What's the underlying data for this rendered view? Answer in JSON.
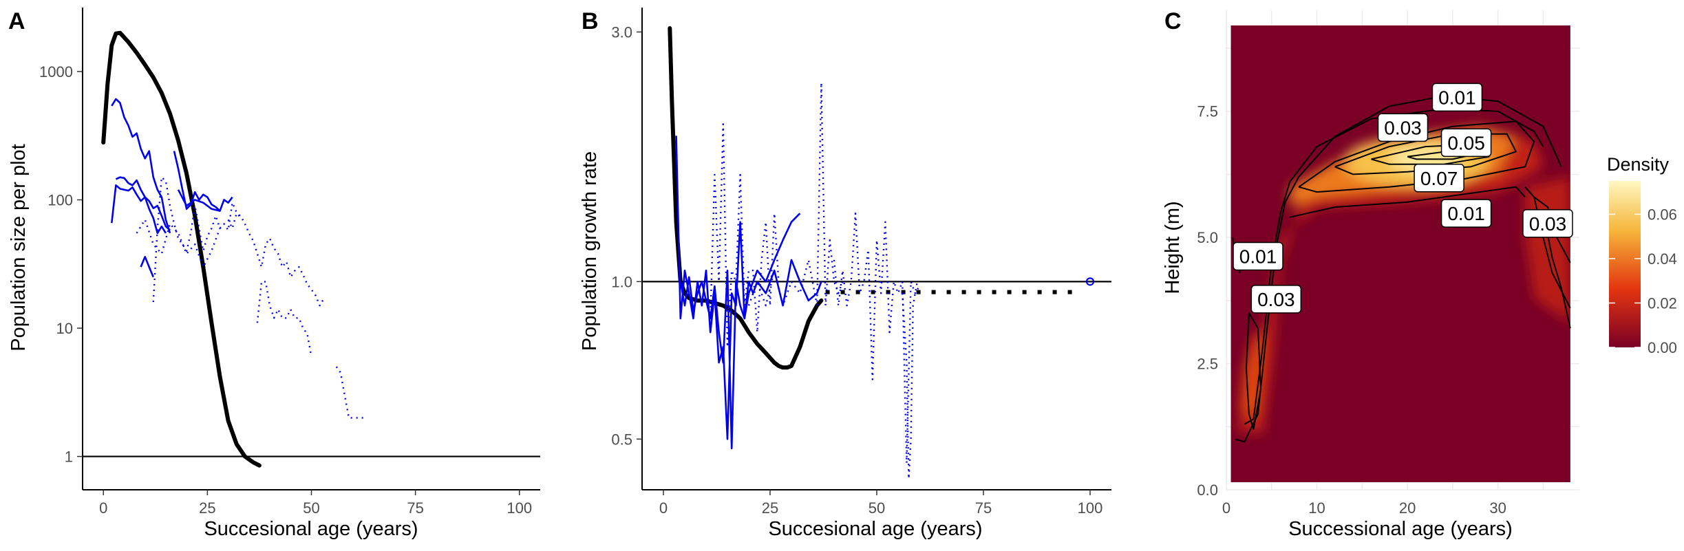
{
  "chart_data": [
    {
      "panel": "A",
      "type": "line",
      "xlabel": "Succesional age (years)",
      "ylabel": "Population size per plot",
      "xlim": [
        -5,
        105
      ],
      "ylim": [
        0.55,
        3000
      ],
      "y_scale": "log10",
      "x_ticks": [
        0,
        25,
        50,
        75,
        100
      ],
      "y_ticks": [
        1,
        10,
        100,
        1000
      ],
      "hline": 1,
      "series": [
        {
          "style": "thick-black",
          "x": [
            0,
            1,
            2,
            3,
            4,
            6,
            8,
            10,
            12,
            14,
            16,
            18,
            20,
            22,
            24,
            26,
            28,
            30,
            32,
            34,
            36,
            37.5
          ],
          "y": [
            280,
            800,
            1600,
            1980,
            2000,
            1700,
            1400,
            1130,
            900,
            680,
            470,
            290,
            160,
            75,
            30,
            11,
            4.2,
            1.9,
            1.25,
            1.0,
            0.9,
            0.85
          ]
        },
        {
          "style": "solid",
          "x": [
            2,
            3,
            4,
            5,
            6,
            7,
            8,
            9,
            10,
            11,
            12,
            13,
            14,
            15,
            16
          ],
          "y": [
            540,
            610,
            570,
            440,
            380,
            310,
            330,
            250,
            210,
            240,
            150,
            120,
            105,
            70,
            55
          ]
        },
        {
          "style": "solid",
          "x": [
            3,
            4,
            5,
            6,
            7,
            8,
            9,
            10,
            11,
            12,
            13,
            14,
            15,
            16
          ],
          "y": [
            145,
            150,
            148,
            135,
            130,
            142,
            120,
            105,
            98,
            86,
            90,
            75,
            62,
            58
          ]
        },
        {
          "style": "solid",
          "x": [
            2,
            3,
            4,
            5,
            6,
            7,
            8,
            9,
            10,
            11,
            12,
            13,
            14,
            15
          ],
          "y": [
            66,
            130,
            122,
            120,
            118,
            125,
            110,
            98,
            105,
            85,
            72,
            55,
            62,
            55
          ]
        },
        {
          "style": "solid",
          "x": [
            9,
            10,
            11,
            12
          ],
          "y": [
            30,
            36,
            30,
            25
          ]
        },
        {
          "style": "solid",
          "x": [
            17,
            18,
            19,
            20,
            21,
            22,
            23,
            24,
            25,
            26,
            27,
            28,
            29,
            30,
            31
          ],
          "y": [
            240,
            175,
            120,
            85,
            92,
            115,
            100,
            110,
            105,
            92,
            88,
            82,
            100,
            95,
            105
          ]
        },
        {
          "style": "solid",
          "x": [
            18,
            20,
            22,
            24,
            26,
            28
          ],
          "y": [
            120,
            90,
            100,
            95,
            85,
            82
          ]
        },
        {
          "style": "dotted",
          "x": [
            12,
            13,
            14,
            15,
            16,
            17,
            18,
            19,
            20,
            21,
            22,
            23,
            24,
            25,
            26,
            27,
            28,
            29,
            30,
            31,
            32,
            33
          ],
          "y": [
            16,
            60,
            150,
            140,
            90,
            65,
            50,
            45,
            40,
            55,
            90,
            60,
            40,
            52,
            60,
            75,
            60,
            65,
            58,
            95,
            80,
            72
          ]
        },
        {
          "style": "dotted",
          "x": [
            8,
            10,
            12,
            14,
            16,
            18,
            20,
            22,
            24,
            26,
            28
          ],
          "y": [
            55,
            70,
            45,
            38,
            65,
            55,
            38,
            45,
            30,
            40,
            60
          ]
        },
        {
          "style": "dotted",
          "x": [
            30,
            31,
            32,
            33,
            34,
            35,
            36,
            37,
            38,
            39,
            40,
            41,
            42,
            43,
            44,
            45,
            46,
            47,
            48,
            49,
            50,
            51,
            52,
            53
          ],
          "y": [
            70,
            60,
            78,
            75,
            65,
            55,
            48,
            38,
            30,
            45,
            50,
            42,
            38,
            30,
            33,
            25,
            28,
            30,
            26,
            22,
            20,
            18,
            15,
            17
          ]
        },
        {
          "style": "dotted",
          "x": [
            37,
            38,
            39,
            40,
            41,
            42,
            43,
            44,
            45,
            46,
            47,
            48,
            49,
            50
          ],
          "y": [
            11,
            23,
            23,
            15,
            12,
            14,
            12,
            12,
            14,
            12,
            12,
            10,
            9,
            6
          ]
        },
        {
          "style": "dotted",
          "x": [
            56,
            57,
            58,
            59,
            60,
            61,
            62,
            63
          ],
          "y": [
            5,
            4.5,
            3,
            2,
            2,
            2,
            2,
            2
          ]
        }
      ]
    },
    {
      "panel": "B",
      "type": "line",
      "xlabel": "Succesional age (years)",
      "ylabel": "Population growth rate",
      "xlim": [
        -5,
        105
      ],
      "ylim": [
        0.4,
        3.3
      ],
      "y_scale": "log10",
      "x_ticks": [
        0,
        25,
        50,
        75,
        100
      ],
      "y_ticks": [
        0.5,
        1.0,
        3.0
      ],
      "y_tick_labels": [
        "0.5",
        "1.0",
        "3.0"
      ],
      "hline": 1.0,
      "equilibrium_point": {
        "x": 100,
        "y": 1.0
      },
      "series": [
        {
          "style": "thick-black",
          "x": [
            1.5,
            2,
            3,
            4,
            5,
            6,
            8,
            10,
            12,
            14,
            16,
            18,
            20,
            22,
            24,
            26,
            27,
            28,
            29,
            30,
            32,
            34,
            36,
            37
          ],
          "y": [
            3.05,
            2.2,
            1.3,
            1.0,
            0.95,
            0.93,
            0.92,
            0.92,
            0.91,
            0.9,
            0.88,
            0.85,
            0.8,
            0.76,
            0.73,
            0.7,
            0.69,
            0.685,
            0.685,
            0.69,
            0.75,
            0.84,
            0.9,
            0.92
          ]
        },
        {
          "style": "thick-black-dotted",
          "x": [
            38,
            45,
            55,
            65,
            75,
            85,
            95,
            98
          ],
          "y": [
            0.955,
            0.955,
            0.955,
            0.955,
            0.955,
            0.955,
            0.955,
            0.955
          ]
        },
        {
          "style": "solid",
          "x": [
            3,
            4,
            5,
            6,
            7,
            8,
            9,
            10,
            11,
            12,
            13,
            14,
            15,
            16,
            17,
            18,
            19,
            20,
            21,
            22
          ],
          "y": [
            1.9,
            0.85,
            1.05,
            0.95,
            0.85,
            1.0,
            0.9,
            1.05,
            0.8,
            0.95,
            0.7,
            0.75,
            0.5,
            0.95,
            0.9,
            1.3,
            0.85,
            1.0,
            0.95,
            1.0
          ]
        },
        {
          "style": "solid",
          "x": [
            4,
            5,
            6,
            7,
            8,
            9,
            10,
            11,
            12,
            13,
            14,
            15,
            16,
            17,
            18,
            19,
            20
          ],
          "y": [
            1.0,
            0.9,
            1.02,
            0.88,
            0.95,
            1.0,
            0.92,
            0.85,
            0.98,
            0.8,
            0.7,
            1.05,
            0.48,
            1.0,
            0.9,
            0.85,
            0.95
          ]
        },
        {
          "style": "solid",
          "x": [
            20,
            22,
            24,
            26,
            28,
            30,
            32
          ],
          "y": [
            0.95,
            1.05,
            1.0,
            1.1,
            1.2,
            1.3,
            1.35
          ]
        },
        {
          "style": "solid",
          "x": [
            22,
            24,
            26,
            28,
            30,
            32,
            34,
            36,
            37
          ],
          "y": [
            1.0,
            0.95,
            1.05,
            0.9,
            1.1,
            1.0,
            0.92,
            0.95,
            1.0
          ]
        },
        {
          "style": "dotted",
          "x": [
            11,
            12,
            13,
            14,
            15,
            16,
            17,
            18,
            19,
            20,
            21,
            22,
            23,
            24,
            25,
            26,
            27
          ],
          "y": [
            0.85,
            1.6,
            1.0,
            2.0,
            0.75,
            1.05,
            1.0,
            1.6,
            0.9,
            1.05,
            1.05,
            0.8,
            1.1,
            1.3,
            0.9,
            1.35,
            1.0
          ]
        },
        {
          "style": "dotted",
          "x": [
            20,
            22,
            24,
            26,
            28,
            30,
            32,
            34,
            36,
            37,
            38,
            39,
            40,
            41,
            42
          ],
          "y": [
            0.9,
            1.0,
            0.9,
            1.05,
            0.9,
            1.0,
            0.95,
            1.1,
            0.9,
            2.4,
            0.9,
            1.2,
            1.0,
            0.95,
            1.0
          ]
        },
        {
          "style": "dotted",
          "x": [
            40,
            41,
            42,
            43,
            44,
            45,
            46,
            47,
            48,
            49,
            50,
            51,
            52,
            53,
            54,
            55,
            56,
            57,
            58,
            59,
            60
          ],
          "y": [
            1.1,
            0.9,
            1.05,
            0.9,
            1.0,
            1.35,
            0.95,
            1.0,
            1.15,
            0.65,
            1.2,
            0.95,
            1.3,
            0.8,
            1.0,
            0.95,
            1.0,
            0.45,
            1.0,
            0.95,
            0.98
          ]
        },
        {
          "style": "dotted",
          "x": [
            56,
            57,
            57.5,
            58,
            58.5,
            59,
            59.5
          ],
          "y": [
            0.95,
            0.7,
            0.42,
            0.5,
            0.9,
            0.95,
            1.0
          ]
        }
      ]
    },
    {
      "panel": "C",
      "type": "heatmap",
      "xlabel": "Successional age (years)",
      "ylabel": "Height (m)",
      "xlim": [
        0,
        39
      ],
      "ylim": [
        0,
        9.5
      ],
      "x_ticks": [
        0,
        10,
        20,
        30
      ],
      "y_ticks": [
        0.0,
        2.5,
        5.0,
        7.5
      ],
      "y_tick_labels": [
        "0.0",
        "2.5",
        "5.0",
        "7.5"
      ],
      "data_extent": {
        "x": [
          0.5,
          38
        ],
        "y": [
          0.15,
          9.2
        ]
      },
      "legend": {
        "title": "Density",
        "placement": "right",
        "min": 0,
        "max": 0.075,
        "ticks": [
          0.0,
          0.02,
          0.04,
          0.06
        ],
        "tick_labels": [
          "0.00",
          "0.02",
          "0.04",
          "0.06"
        ]
      },
      "contour_labels": [
        {
          "text": "0.01",
          "x": 25.5,
          "y": 7.75
        },
        {
          "text": "0.03",
          "x": 19.5,
          "y": 7.15
        },
        {
          "text": "0.05",
          "x": 26.5,
          "y": 6.85
        },
        {
          "text": "0.07",
          "x": 23.5,
          "y": 6.15
        },
        {
          "text": "0.01",
          "x": 26.5,
          "y": 5.45
        },
        {
          "text": "0.03",
          "x": 35.5,
          "y": 5.25
        },
        {
          "text": "0.01",
          "x": 3.5,
          "y": 4.6
        },
        {
          "text": "0.03",
          "x": 5.5,
          "y": 3.75
        }
      ]
    }
  ],
  "panel_labels": {
    "a": "A",
    "b": "B",
    "c": "C"
  },
  "colors": {
    "series": "#0000ee",
    "mean": "#000000",
    "low": "#7a0026",
    "mid": "#e3350f",
    "high": "#f5b53a",
    "top": "#fff8c2"
  }
}
